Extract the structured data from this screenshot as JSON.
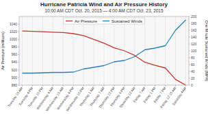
{
  "chart_data": {
    "type": "line",
    "title": "Hurricane Patricia Wind and Air Pressure History",
    "subtitle": "10:00 AM CDT Oct. 20, 2015 — 4:00 AM CDT Oct. 23, 2015",
    "ylabel": "Air Pressure (millibars)",
    "y2label": "One Minute Sustained Winds (MPH)",
    "categories": [
      "Tuesday 10 AM",
      "Tuesday 4 PM",
      "Tuesday 10 PM",
      "Wednesday 4 AM",
      "Wednesday 10 AM",
      "Wednesday 4 PM",
      "Wednesday 10 PM",
      "Thursday 1 AM",
      "Thursday 7 AM",
      "Thursday 12 PM",
      "Thursday 6 PM",
      "Thursday 12 AM",
      "Friday 7 AM",
      "Friday 1 PM",
      "Friday 7 PM",
      "Friday 12:10 AM",
      "Saturday 4AM"
    ],
    "series": [
      {
        "name": "Air Pressure",
        "color": "#c0392b",
        "values": [
          1022,
          1021,
          1020,
          1019,
          1018,
          1015,
          1010,
          1000,
          990,
          978,
          970,
          958,
          940,
          932,
          925,
          895,
          880
        ]
      },
      {
        "name": "Sustained Winds",
        "color": "#2980b9",
        "axis": "y2",
        "values": [
          35,
          35,
          36,
          37,
          37,
          38,
          47,
          52,
          57,
          68,
          72,
          83,
          103,
          108,
          115,
          160,
          190
        ]
      }
    ],
    "ylim": [
      880,
      1060
    ],
    "yticks": [
      880,
      900,
      920,
      940,
      960,
      980,
      1000,
      1020,
      1040
    ],
    "y2lim": [
      0,
      200
    ],
    "y2ticks": [
      0,
      20,
      40,
      60,
      80,
      100,
      120,
      140,
      160,
      180,
      200
    ],
    "grid": "x",
    "legend": "top"
  }
}
